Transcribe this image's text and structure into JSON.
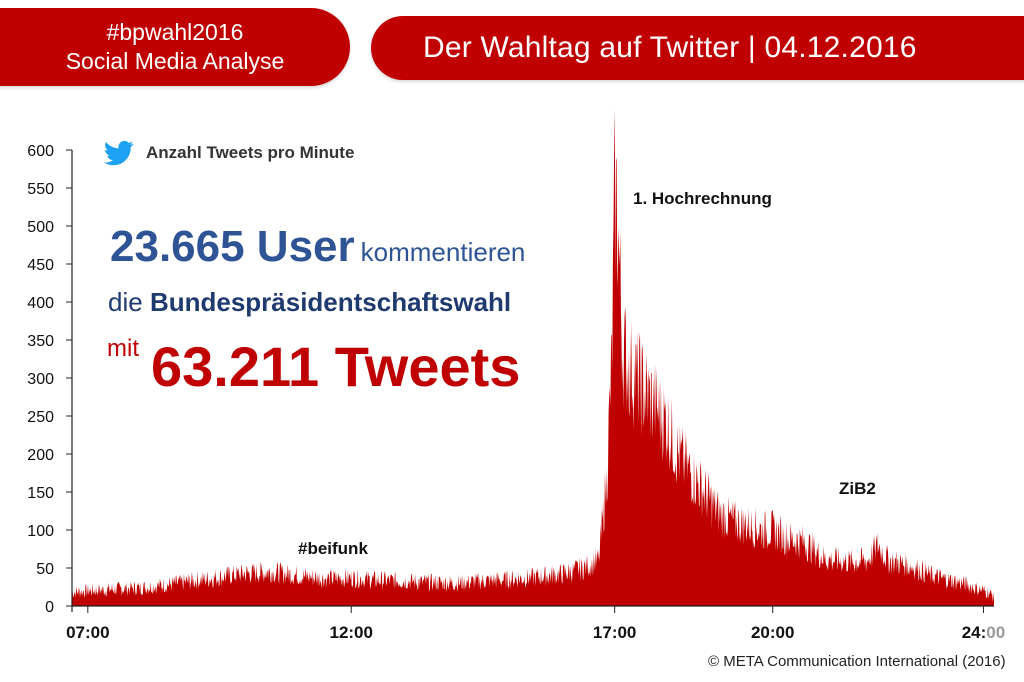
{
  "header": {
    "left_line1": "#bpwahl2016",
    "left_line2": "Social Media Analyse",
    "right_title": "Der Wahltag auf Twitter | 04.12.2016"
  },
  "legend": {
    "icon": "twitter-bird-icon",
    "label": "Anzahl Tweets pro Minute"
  },
  "overlay": {
    "line1_big": "23.665 User",
    "line1_small": "kommentieren",
    "line2_prefix": "die",
    "line2_strong": "Bundespräsidentschaftswahl",
    "line3_prefix": "mit",
    "line3_big": "63.211 Tweets"
  },
  "copyright": "© META Communication International (2016)",
  "colors": {
    "brand_red": "#c00000",
    "navy": "#1f3a6f",
    "accent_blue": "#2e5496"
  },
  "chart_data": {
    "type": "area",
    "title": "",
    "xlabel": "",
    "ylabel": "",
    "ylim": [
      0,
      600
    ],
    "xlim": [
      6.7,
      24.2
    ],
    "y_ticks": [
      0,
      50,
      100,
      150,
      200,
      250,
      300,
      350,
      400,
      450,
      500,
      550,
      600
    ],
    "x_ticks": [
      {
        "x": 7,
        "label": "07:00"
      },
      {
        "x": 12,
        "label": "12:00"
      },
      {
        "x": 17,
        "label": "17:00"
      },
      {
        "x": 20,
        "label": "20:00"
      },
      {
        "x": 24,
        "label_main": "24:",
        "label_faded": "00"
      }
    ],
    "series": [
      {
        "color": "#c00000",
        "x": [
          6.7,
          7.0,
          7.5,
          8.0,
          8.5,
          9.0,
          9.5,
          10.0,
          10.5,
          11.0,
          11.5,
          12.0,
          12.5,
          13.0,
          13.5,
          14.0,
          14.5,
          15.0,
          15.5,
          16.0,
          16.4,
          16.7,
          16.85,
          16.95,
          17.0,
          17.05,
          17.1,
          17.15,
          17.25,
          17.4,
          17.6,
          17.8,
          18.0,
          18.2,
          18.5,
          18.8,
          19.0,
          19.3,
          19.6,
          19.8,
          20.0,
          20.3,
          20.6,
          21.0,
          21.2,
          21.5,
          21.8,
          22.0,
          22.2,
          22.5,
          22.8,
          23.0,
          23.3,
          23.6,
          23.9,
          24.1,
          24.2
        ],
        "y": [
          18,
          20,
          22,
          24,
          28,
          33,
          38,
          43,
          45,
          40,
          36,
          37,
          34,
          33,
          31,
          30,
          33,
          35,
          38,
          42,
          50,
          60,
          170,
          330,
          540,
          520,
          430,
          340,
          320,
          300,
          280,
          260,
          240,
          200,
          170,
          140,
          120,
          110,
          105,
          100,
          100,
          88,
          84,
          62,
          60,
          58,
          60,
          80,
          60,
          55,
          48,
          40,
          35,
          30,
          22,
          18,
          12
        ]
      }
    ],
    "annotations": [
      {
        "text": "1. Hochrechnung"
      },
      {
        "text": "#beifunk"
      },
      {
        "text": "ZiB2"
      }
    ]
  }
}
